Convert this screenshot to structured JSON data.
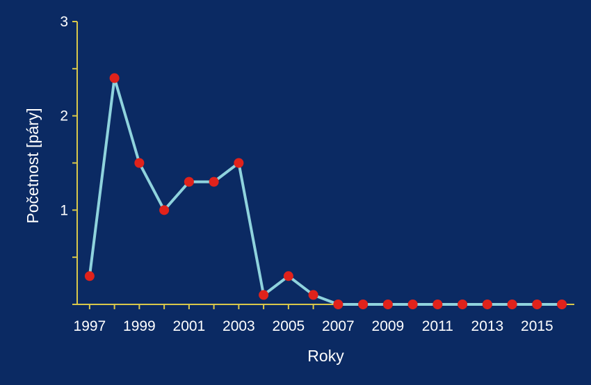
{
  "colors": {
    "background": "#0b2a63",
    "axis": "#d9c84a",
    "line": "#8fd3dd",
    "marker": "#e0221b",
    "text": "#ffffff"
  },
  "chart_data": {
    "type": "line",
    "title": "",
    "xlabel": "Roky",
    "ylabel": "Početnost [páry]",
    "xlim": [
      1996.5,
      2016.5
    ],
    "ylim": [
      0,
      3
    ],
    "x_ticks": [
      1997,
      1999,
      2001,
      2003,
      2005,
      2007,
      2009,
      2011,
      2013,
      2015
    ],
    "x_tick_labels": [
      "1997",
      "1999",
      "2001",
      "2003",
      "2005",
      "2007",
      "2009",
      "2011",
      "2013",
      "2015"
    ],
    "y_ticks": [
      0,
      0.5,
      1,
      1.5,
      2,
      2.5,
      3
    ],
    "y_tick_labels": [
      "",
      "",
      "1",
      "",
      "2",
      "",
      "3"
    ],
    "grid": false,
    "series": [
      {
        "x": [
          1997,
          1998,
          1999,
          2000,
          2001,
          2002,
          2003,
          2004,
          2005,
          2006,
          2007,
          2008,
          2009,
          2010,
          2011,
          2012,
          2013,
          2014,
          2015,
          2016
        ],
        "values": [
          0.3,
          2.4,
          1.5,
          1.0,
          1.3,
          1.3,
          1.5,
          0.1,
          0.3,
          0.1,
          0,
          0,
          0,
          0,
          0,
          0,
          0,
          0,
          0,
          0
        ]
      }
    ]
  }
}
